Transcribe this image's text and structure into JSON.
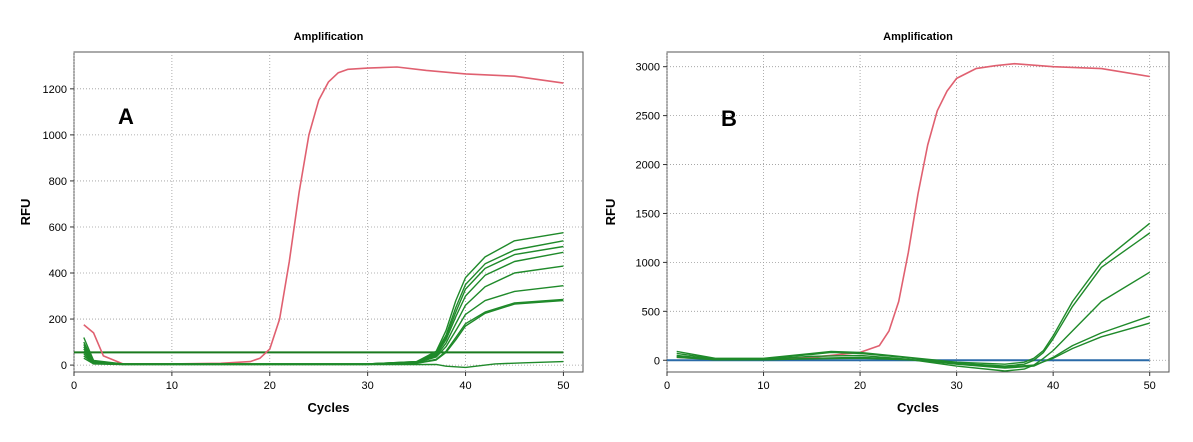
{
  "chart_data": [
    {
      "type": "line",
      "title": "Amplification",
      "panel_label": "A",
      "xlabel": "Cycles",
      "ylabel": "RFU",
      "xlim": [
        0,
        52
      ],
      "ylim": [
        -30,
        1360
      ],
      "xticks": [
        0,
        10,
        20,
        30,
        40,
        50
      ],
      "yticks": [
        0,
        200,
        400,
        600,
        800,
        1000,
        1200
      ],
      "grid": true,
      "threshold": 55,
      "colors": {
        "positive": "#e06070",
        "sample": "#1f8a2a",
        "threshold": "#1a7a1f",
        "background": "#ffffff"
      },
      "series": [
        {
          "role": "positive",
          "x": [
            1,
            2,
            3,
            5,
            10,
            15,
            18,
            19,
            20,
            21,
            22,
            23,
            24,
            25,
            26,
            27,
            28,
            30,
            33,
            36,
            40,
            45,
            50
          ],
          "y": [
            175,
            140,
            40,
            5,
            5,
            8,
            15,
            30,
            70,
            200,
            450,
            750,
            1000,
            1150,
            1230,
            1270,
            1285,
            1290,
            1295,
            1280,
            1265,
            1255,
            1225
          ]
        },
        {
          "role": "sample",
          "x": [
            1,
            2,
            5,
            30,
            35,
            37,
            38,
            39,
            40,
            42,
            45,
            50
          ],
          "y": [
            120,
            20,
            5,
            5,
            15,
            60,
            150,
            280,
            380,
            470,
            540,
            575
          ]
        },
        {
          "role": "sample",
          "x": [
            1,
            2,
            5,
            30,
            35,
            37,
            38,
            39,
            40,
            42,
            45,
            50
          ],
          "y": [
            100,
            15,
            5,
            5,
            15,
            55,
            130,
            250,
            350,
            440,
            500,
            540
          ]
        },
        {
          "role": "sample",
          "x": [
            1,
            2,
            5,
            30,
            35,
            37,
            38,
            39,
            40,
            42,
            45,
            50
          ],
          "y": [
            80,
            10,
            5,
            5,
            14,
            50,
            120,
            230,
            330,
            420,
            480,
            515
          ]
        },
        {
          "role": "sample",
          "x": [
            1,
            2,
            5,
            30,
            35,
            37,
            38,
            39,
            40,
            42,
            45,
            50
          ],
          "y": [
            60,
            10,
            5,
            5,
            13,
            45,
            110,
            210,
            300,
            390,
            450,
            490
          ]
        },
        {
          "role": "sample",
          "x": [
            1,
            2,
            5,
            30,
            35,
            37,
            38,
            39,
            40,
            42,
            45,
            50
          ],
          "y": [
            90,
            12,
            4,
            4,
            12,
            40,
            95,
            180,
            260,
            340,
            400,
            430
          ]
        },
        {
          "role": "sample",
          "x": [
            1,
            2,
            5,
            30,
            35,
            37,
            38,
            39,
            40,
            42,
            45,
            50
          ],
          "y": [
            70,
            10,
            4,
            4,
            10,
            35,
            80,
            150,
            220,
            280,
            320,
            345
          ]
        },
        {
          "role": "sample",
          "x": [
            1,
            2,
            5,
            30,
            35,
            37,
            38,
            39,
            40,
            42,
            45,
            50
          ],
          "y": [
            50,
            8,
            3,
            3,
            8,
            25,
            60,
            120,
            180,
            230,
            270,
            285
          ]
        },
        {
          "role": "sample",
          "x": [
            1,
            2,
            5,
            30,
            35,
            37,
            38,
            39,
            40,
            42,
            45,
            50
          ],
          "y": [
            40,
            8,
            3,
            3,
            8,
            22,
            55,
            110,
            170,
            225,
            265,
            280
          ]
        },
        {
          "role": "sample",
          "x": [
            1,
            2,
            5,
            30,
            37,
            38,
            40,
            43,
            46,
            50
          ],
          "y": [
            30,
            5,
            2,
            2,
            3,
            -5,
            -10,
            5,
            10,
            15
          ]
        }
      ]
    },
    {
      "type": "line",
      "title": "Amplification",
      "panel_label": "B",
      "xlabel": "Cycles",
      "ylabel": "RFU",
      "xlim": [
        0,
        52
      ],
      "ylim": [
        -120,
        3150
      ],
      "xticks": [
        0,
        10,
        20,
        30,
        40,
        50
      ],
      "yticks": [
        0,
        500,
        1000,
        1500,
        2000,
        2500,
        3000
      ],
      "grid": true,
      "threshold": 0,
      "colors": {
        "positive": "#e06070",
        "sample": "#1f8a2a",
        "marker": "#9a9a9a",
        "threshold": "#2a6aa8",
        "background": "#ffffff"
      },
      "series": [
        {
          "role": "positive",
          "x": [
            1,
            5,
            10,
            15,
            20,
            22,
            23,
            24,
            25,
            26,
            27,
            28,
            29,
            30,
            32,
            34,
            36,
            40,
            45,
            50
          ],
          "y": [
            30,
            10,
            15,
            30,
            80,
            150,
            300,
            600,
            1100,
            1700,
            2200,
            2550,
            2750,
            2880,
            2980,
            3010,
            3030,
            3000,
            2980,
            2900
          ]
        },
        {
          "role": "sample",
          "x": [
            1,
            5,
            10,
            15,
            17,
            20,
            25,
            30,
            35,
            37,
            38,
            39,
            40,
            42,
            45,
            50
          ],
          "y": [
            90,
            20,
            20,
            70,
            90,
            80,
            30,
            -20,
            -40,
            -20,
            20,
            100,
            250,
            600,
            1000,
            1400
          ]
        },
        {
          "role": "sample",
          "x": [
            1,
            5,
            10,
            15,
            17,
            20,
            25,
            30,
            35,
            37,
            38,
            39,
            40,
            42,
            45,
            50
          ],
          "y": [
            70,
            15,
            15,
            60,
            80,
            70,
            25,
            -30,
            -60,
            -40,
            0,
            80,
            220,
            550,
            950,
            1300
          ]
        },
        {
          "role": "sample",
          "x": [
            1,
            5,
            10,
            15,
            20,
            25,
            30,
            35,
            37,
            38,
            39,
            40,
            42,
            45,
            50
          ],
          "y": [
            50,
            10,
            10,
            40,
            50,
            10,
            -60,
            -110,
            -90,
            -50,
            20,
            100,
            300,
            600,
            900
          ]
        },
        {
          "role": "sample",
          "x": [
            1,
            5,
            10,
            15,
            20,
            25,
            30,
            35,
            38,
            40,
            42,
            45,
            50
          ],
          "y": [
            40,
            5,
            5,
            20,
            30,
            10,
            -40,
            -80,
            -60,
            30,
            150,
            280,
            450
          ]
        },
        {
          "role": "sample",
          "x": [
            1,
            5,
            10,
            15,
            20,
            25,
            30,
            35,
            38,
            40,
            42,
            45,
            50
          ],
          "y": [
            30,
            5,
            5,
            15,
            20,
            5,
            -30,
            -70,
            -50,
            20,
            120,
            240,
            380
          ]
        }
      ]
    }
  ]
}
